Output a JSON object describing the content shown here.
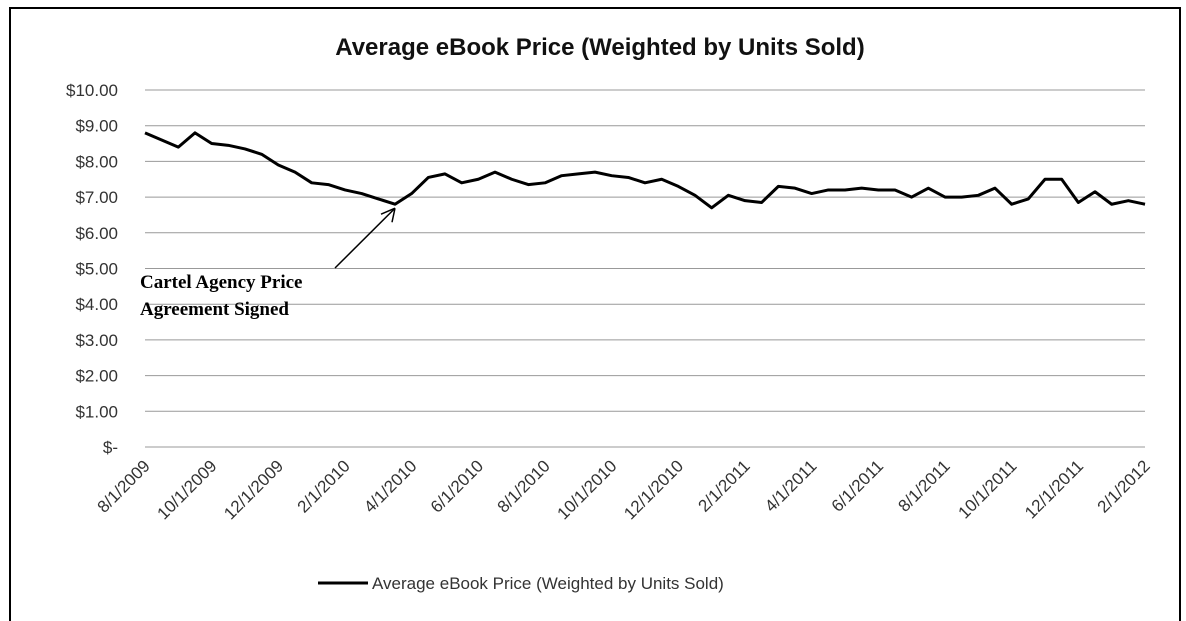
{
  "chart_data": {
    "type": "line",
    "title": "Average eBook Price (Weighted by Units Sold)",
    "categories": [
      "8/1/2009",
      null,
      null,
      null,
      "10/1/2009",
      null,
      null,
      null,
      "12/1/2009",
      null,
      null,
      null,
      "2/1/2010",
      null,
      null,
      null,
      "4/1/2010",
      null,
      null,
      null,
      "6/1/2010",
      null,
      null,
      null,
      "8/1/2010",
      null,
      null,
      null,
      "10/1/2010",
      null,
      null,
      null,
      "12/1/2010",
      null,
      null,
      null,
      "2/1/2011",
      null,
      null,
      null,
      "4/1/2011",
      null,
      null,
      null,
      "6/1/2011",
      null,
      null,
      null,
      "8/1/2011",
      null,
      null,
      null,
      "10/1/2011",
      null,
      null,
      null,
      "12/1/2011",
      null,
      null,
      null,
      "2/1/2012"
    ],
    "series": [
      {
        "name": "Average eBook Price (Weighted by Units Sold)",
        "color": "#000000",
        "values": [
          8.8,
          8.6,
          8.4,
          8.8,
          8.5,
          8.45,
          8.35,
          8.2,
          7.9,
          7.7,
          7.4,
          7.35,
          7.2,
          7.1,
          6.95,
          6.8,
          7.1,
          7.55,
          7.65,
          7.4,
          7.5,
          7.7,
          7.5,
          7.35,
          7.4,
          7.6,
          7.65,
          7.7,
          7.6,
          7.55,
          7.4,
          7.5,
          7.3,
          7.05,
          6.7,
          7.05,
          6.9,
          6.85,
          7.3,
          7.25,
          7.1,
          7.2,
          7.2,
          7.25,
          7.2,
          7.2,
          7.0,
          7.25,
          7.0,
          7.0,
          7.05,
          7.25,
          6.8,
          6.95,
          7.5,
          7.5,
          6.85,
          7.15,
          6.8,
          6.9,
          6.8
        ]
      }
    ],
    "ylim": [
      0,
      10
    ],
    "yticks": [
      {
        "value": 0,
        "label": "$-"
      },
      {
        "value": 1,
        "label": "$1.00"
      },
      {
        "value": 2,
        "label": "$2.00"
      },
      {
        "value": 3,
        "label": "$3.00"
      },
      {
        "value": 4,
        "label": "$4.00"
      },
      {
        "value": 5,
        "label": "$5.00"
      },
      {
        "value": 6,
        "label": "$6.00"
      },
      {
        "value": 7,
        "label": "$7.00"
      },
      {
        "value": 8,
        "label": "$8.00"
      },
      {
        "value": 9,
        "label": "$9.00"
      },
      {
        "value": 10,
        "label": "$10.00"
      }
    ],
    "grid": true,
    "legend": "bottom",
    "annotation": [
      "Cartel Agency Price",
      "Agreement Signed"
    ]
  }
}
